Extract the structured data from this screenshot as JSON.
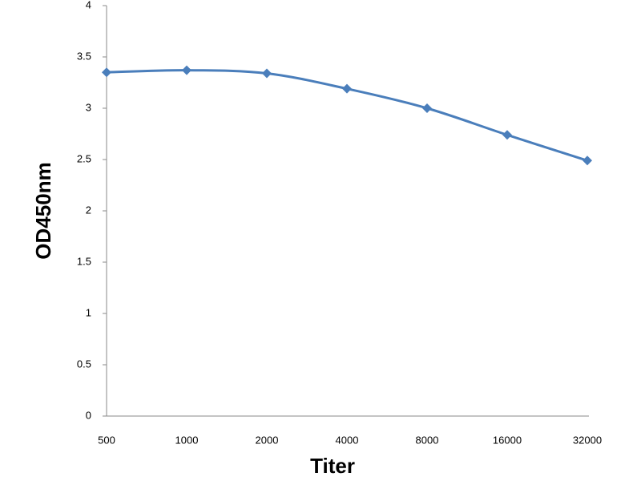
{
  "chart_data": {
    "type": "line",
    "x_label": "Titer",
    "y_label": "OD450nm",
    "categories": [
      "500",
      "1000",
      "2000",
      "4000",
      "8000",
      "16000",
      "32000"
    ],
    "values": [
      3.35,
      3.37,
      3.34,
      3.19,
      3.0,
      2.74,
      2.49
    ],
    "color": "#4a7ebb",
    "ylim": [
      0,
      4
    ],
    "yticks": [
      0,
      0.5,
      1,
      1.5,
      2,
      2.5,
      3,
      3.5,
      4
    ],
    "grid": false
  }
}
